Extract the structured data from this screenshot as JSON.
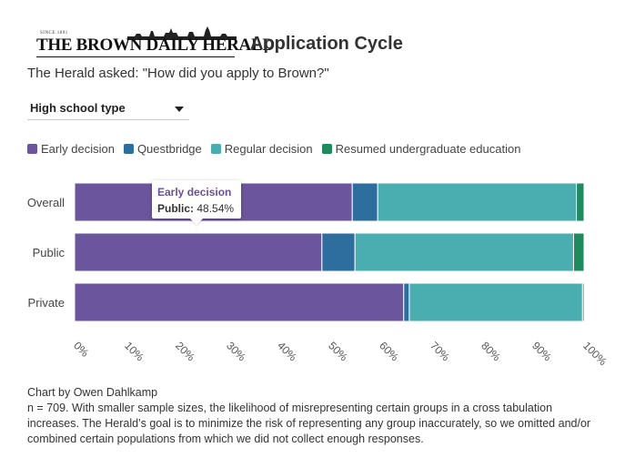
{
  "masthead": {
    "name": "THE BROWN DAILY HERALD",
    "since": "SINCE 1891"
  },
  "title": "Application Cycle",
  "subtitle": "The Herald asked: \"How did you apply to Brown?\"",
  "dropdown": {
    "selected": "High school type"
  },
  "tooltip": {
    "series": "Early decision",
    "category_label": "Public:",
    "value_text": "48.54%"
  },
  "credit": "Chart by Owen Dahlkamp",
  "note": "n = 709. With smaller sample sizes, the likelihood of misrepresenting certain groups in a cross tabulation increases. The Herald’s goal is to minimize the risk of representing any group inaccurately, so we omitted and/or combined certain populations from which we did not collect enough responses.",
  "chart_data": {
    "type": "bar",
    "orientation": "horizontal",
    "stacked": true,
    "categories": [
      "Overall",
      "Public",
      "Private"
    ],
    "series": [
      {
        "name": "Early decision",
        "color": "#6b559d",
        "values": [
          54.5,
          48.54,
          64.6
        ]
      },
      {
        "name": "Questbridge",
        "color": "#2e6e9e",
        "values": [
          5.0,
          6.5,
          1.1
        ]
      },
      {
        "name": "Regular decision",
        "color": "#4aadaf",
        "values": [
          39.0,
          42.9,
          34.0
        ]
      },
      {
        "name": "Resumed undergraduate education",
        "color": "#1f8a5e",
        "values": [
          1.5,
          2.06,
          0.3
        ]
      }
    ],
    "xlim": [
      0,
      100
    ],
    "x_ticks": [
      "0%",
      "10%",
      "20%",
      "30%",
      "40%",
      "50%",
      "60%",
      "70%",
      "80%",
      "90%",
      "100%"
    ],
    "legend_position": "top-left",
    "grid": false
  }
}
